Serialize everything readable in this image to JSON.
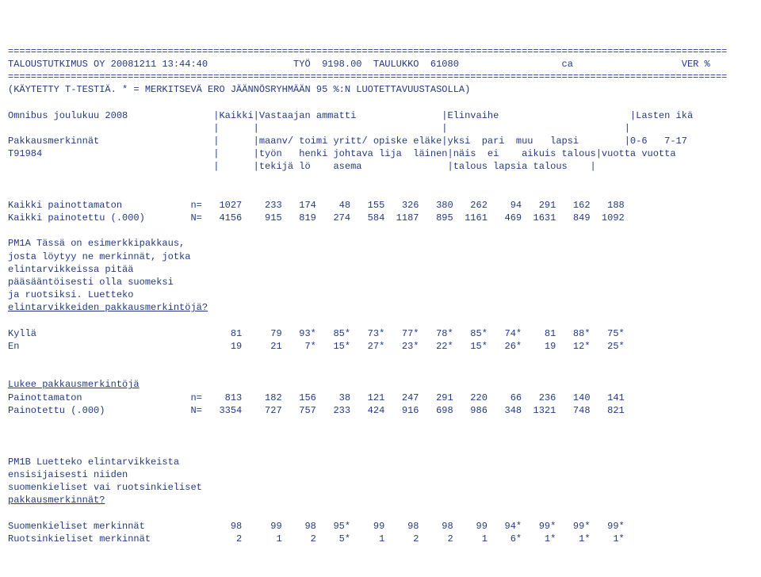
{
  "sep": "==============================================================================================================================",
  "hdr_line": "TALOUSTUTKIMUS OY 20081211 13:44:40               TYÖ  9198.00  TAULUKKO  61080                  ca                   VER %",
  "sub_line": "(KÄYTETTY T-TESTIÄ. * = MERKITSEVÄ ERO JÄÄNNÖSRYHMÄÄN 95 %:N LUOTETTAVUUSTASOLLA)",
  "title_row": "Omnibus joulukuu 2008               |Kaikki|Vastaajan ammatti               |Elinvaihe                       |Lasten ikä",
  "col_r1": "                                    |      |                                |                               |",
  "col_r2": "Pakkausmerkinnät                    |      |maanv/ toimi yritt/ opiske eläke|yksi  pari  muu   lapsi        |0-6   7-17",
  "col_r3": "T91984                              |      |työn   henki johtava lija  läinen|näis  ei    aikuis talous|vuotta vuotta",
  "col_r4": "                                    |      |tekijä lö    asema               |talous lapsia talous    |",
  "r1_label": "Kaikki painottamaton            n=",
  "r1_vals": "   1027    233   174    48   155   326   380   262    94   291   162   188",
  "r2_label": "Kaikki painotettu (.000)        N=",
  "r2_vals": "   4156    915   819   274   584  1187   895  1161   469  1631   849  1092",
  "pm1a_l1": "PM1A Tässä on esimerkkipakkaus,",
  "pm1a_l2": "josta löytyy ne merkinnät, jotka",
  "pm1a_l3": "elintarvikkeissa pitää",
  "pm1a_l4": "pääsääntöisesti olla suomeksi",
  "pm1a_l5": "ja ruotsiksi. Luetteko",
  "pm1a_l6": "elintarvikkeiden pakkausmerkintöjä?",
  "kylla_label": "Kyllä",
  "kylla_vals": "                                  81     79   93*   85*   73*   77*   78*   85*   74*    81   88*   75*",
  "en_label": "En",
  "en_vals": "                                     19     21    7*   15*   27*   23*   22*   15*   26*    19   12*   25*",
  "lukee_hdr": "Lukee pakkausmerkintöjä",
  "lr1_label": "Painottamaton                   n=",
  "lr1_vals": "    813    182   156    38   121   247   291   220    66   236   140   141",
  "lr2_label": "Painotettu (.000)               N=",
  "lr2_vals": "   3354    727   757   233   424   916   698   986   348  1321   748   821",
  "pm1b_l1": "PM1B Luetteko elintarvikkeista",
  "pm1b_l2": "ensisijaisesti niiden",
  "pm1b_l3": "suomenkieliset vai ruotsinkieliset",
  "pm1b_l4": "pakkausmerkinnät?",
  "sk_label": "Suomenkieliset merkinnät",
  "sk_vals": "               98     99    98   95*    99    98    98    99   94*   99*   99*   99*",
  "rk_label": "Ruotsinkieliset merkinnät",
  "rk_vals": "               2      1     2    5*     1     2     2     1    6*    1*    1*    1*"
}
